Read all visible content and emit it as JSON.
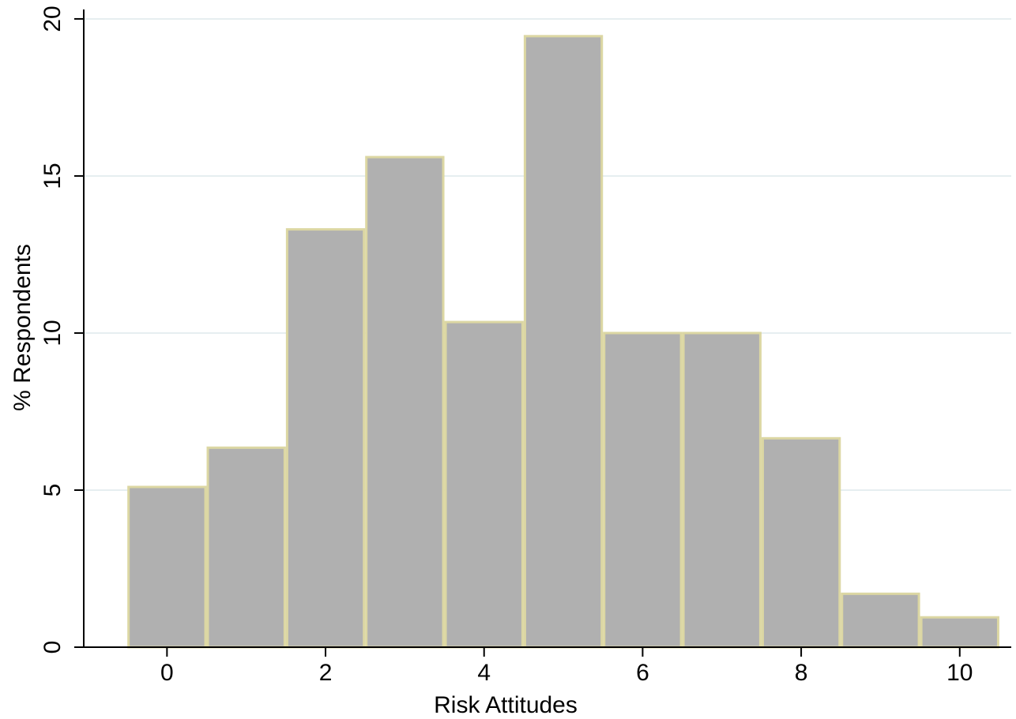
{
  "chart_data": {
    "type": "bar",
    "title": "",
    "xlabel": "Risk Attitudes",
    "ylabel": "% Respondents",
    "categories": [
      0,
      1,
      2,
      3,
      4,
      5,
      6,
      7,
      8,
      9,
      10
    ],
    "values": [
      5.1,
      6.35,
      13.3,
      15.6,
      10.35,
      19.45,
      10.0,
      10.0,
      6.65,
      1.7,
      0.95
    ],
    "bin_width": 1,
    "xlim": [
      -1.05,
      10.65
    ],
    "ylim": [
      0,
      20.3
    ],
    "xticks": [
      0,
      2,
      4,
      6,
      8,
      10
    ],
    "yticks": [
      0,
      5,
      10,
      15,
      20
    ],
    "xtick_labels": [
      "0",
      "2",
      "4",
      "6",
      "8",
      "10"
    ],
    "ytick_labels": [
      "0",
      "5",
      "10",
      "15",
      "20"
    ],
    "grid": true,
    "bar_fill": "#b0b0b0",
    "bar_edge": "#dcd7a3",
    "grid_color": "#e6eef0"
  }
}
